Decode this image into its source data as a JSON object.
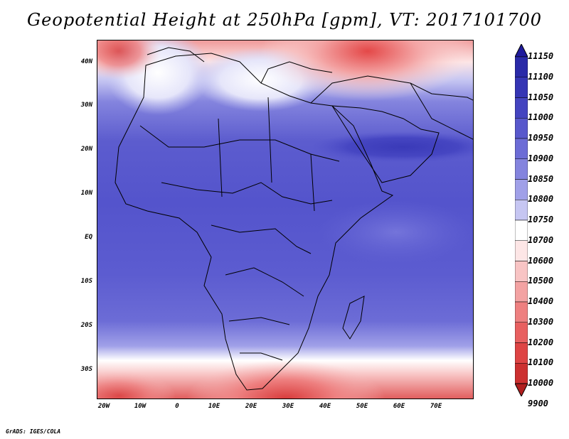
{
  "title": "Geopotential Height at 250hPa [gpm], VT: 2017101700",
  "footer": "GrADS: IGES/COLA",
  "map": {
    "field": "Geopotential Height",
    "level": "250hPa",
    "units": "gpm",
    "region": "Africa",
    "lat_range": [
      -37,
      45
    ],
    "lon_range": [
      -22,
      80
    ],
    "lat_labels": [
      "40N",
      "30N",
      "20N",
      "10N",
      "EQ",
      "10S",
      "20S",
      "30S"
    ],
    "lon_labels": [
      "20W",
      "10W",
      "0",
      "10E",
      "20E",
      "30E",
      "40E",
      "50E",
      "60E",
      "70E"
    ]
  },
  "colorbar": {
    "levels": [
      "11150",
      "11100",
      "11050",
      "11000",
      "10950",
      "10900",
      "10850",
      "10800",
      "10750",
      "10700",
      "10600",
      "10500",
      "10400",
      "10300",
      "10200",
      "10100",
      "10000",
      "9900"
    ],
    "colors": [
      "#1f1a9c",
      "#2a2aa8",
      "#3535b4",
      "#4444c0",
      "#5858cc",
      "#6c6cd6",
      "#8484de",
      "#a0a0e8",
      "#c6c6f2",
      "#ffffff",
      "#fde6e6",
      "#f8c4c4",
      "#f3a2a2",
      "#ee8080",
      "#e86060",
      "#de4444",
      "#cc3030",
      "#b01e1e"
    ]
  }
}
